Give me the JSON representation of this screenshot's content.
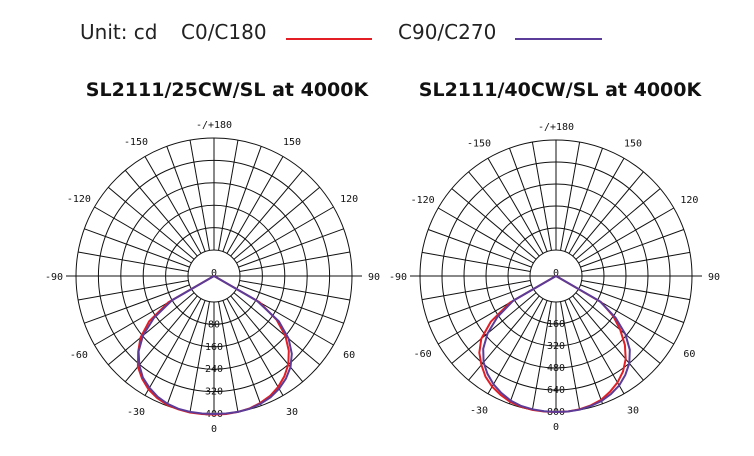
{
  "legend": {
    "unit_label": "Unit: cd",
    "items": [
      {
        "name": "C0/C180",
        "color": "#e31e24"
      },
      {
        "name": "C90/C270",
        "color": "#5b3c98"
      }
    ]
  },
  "chart_data": [
    {
      "type": "polar",
      "title": "SL2111/25CW/SL at 4000K",
      "unit": "cd",
      "angle_labels": [
        {
          "angle": 180,
          "text": "-/+180"
        },
        {
          "angle": 150,
          "text": "150"
        },
        {
          "angle": -150,
          "text": "-150"
        },
        {
          "angle": 120,
          "text": "120"
        },
        {
          "angle": -120,
          "text": "-120"
        },
        {
          "angle": 90,
          "text": "90"
        },
        {
          "angle": -90,
          "text": "-90"
        },
        {
          "angle": 60,
          "text": "60"
        },
        {
          "angle": -60,
          "text": "-60"
        },
        {
          "angle": 30,
          "text": "30"
        },
        {
          "angle": -30,
          "text": "-30"
        },
        {
          "angle": 0,
          "text": "0"
        }
      ],
      "ring_values": [
        0,
        80,
        160,
        240,
        320,
        400
      ],
      "rmax": 400,
      "series": [
        {
          "name": "C0/C180",
          "color": "#e31e24",
          "angles": [
            -60,
            -55,
            -50,
            -45,
            -40,
            -35,
            -30,
            -25,
            -20,
            -15,
            -10,
            -5,
            0,
            5,
            10,
            15,
            20,
            25,
            30,
            35,
            40,
            45,
            50,
            55,
            60
          ],
          "values": [
            95,
            190,
            250,
            290,
            330,
            355,
            375,
            388,
            397,
            400,
            402,
            402,
            402,
            402,
            400,
            397,
            390,
            380,
            365,
            345,
            320,
            285,
            240,
            180,
            95
          ]
        },
        {
          "name": "C90/C270",
          "color": "#5b3c98",
          "angles": [
            -60,
            -55,
            -50,
            -45,
            -40,
            -35,
            -30,
            -25,
            -20,
            -15,
            -10,
            -5,
            0,
            5,
            10,
            15,
            20,
            25,
            30,
            35,
            40,
            45,
            50,
            55,
            60
          ],
          "values": [
            80,
            170,
            238,
            288,
            322,
            350,
            368,
            383,
            393,
            398,
            400,
            400,
            400,
            400,
            400,
            398,
            393,
            385,
            372,
            355,
            332,
            300,
            255,
            190,
            85
          ]
        }
      ]
    },
    {
      "type": "polar",
      "title": "SL2111/40CW/SL at 4000K",
      "unit": "cd",
      "angle_labels": [
        {
          "angle": 180,
          "text": "-/+180"
        },
        {
          "angle": 150,
          "text": "150"
        },
        {
          "angle": -150,
          "text": "-150"
        },
        {
          "angle": 120,
          "text": "120"
        },
        {
          "angle": -120,
          "text": "-120"
        },
        {
          "angle": 90,
          "text": "90"
        },
        {
          "angle": -90,
          "text": "-90"
        },
        {
          "angle": 60,
          "text": "60"
        },
        {
          "angle": -60,
          "text": "-60"
        },
        {
          "angle": 30,
          "text": "30"
        },
        {
          "angle": -30,
          "text": "-30"
        },
        {
          "angle": 0,
          "text": "0"
        }
      ],
      "ring_values": [
        0,
        160,
        320,
        480,
        640,
        800
      ],
      "rmax": 800,
      "series": [
        {
          "name": "C0/C180",
          "color": "#e31e24",
          "angles": [
            -60,
            -55,
            -50,
            -45,
            -40,
            -35,
            -30,
            -25,
            -20,
            -15,
            -10,
            -5,
            0,
            5,
            10,
            15,
            20,
            25,
            30,
            35,
            40,
            45,
            50,
            55,
            60
          ],
          "values": [
            200,
            390,
            520,
            600,
            655,
            705,
            740,
            765,
            785,
            795,
            800,
            800,
            800,
            800,
            795,
            785,
            770,
            740,
            705,
            660,
            600,
            520,
            420,
            320,
            190
          ]
        },
        {
          "name": "C90/C270",
          "color": "#5b3c98",
          "angles": [
            -60,
            -55,
            -50,
            -45,
            -40,
            -35,
            -30,
            -25,
            -20,
            -15,
            -10,
            -5,
            0,
            5,
            10,
            15,
            20,
            25,
            30,
            35,
            40,
            45,
            50,
            55,
            60
          ],
          "values": [
            170,
            330,
            460,
            560,
            630,
            680,
            720,
            750,
            775,
            790,
            795,
            798,
            800,
            800,
            798,
            790,
            778,
            758,
            730,
            690,
            640,
            570,
            470,
            340,
            180
          ]
        }
      ]
    }
  ]
}
